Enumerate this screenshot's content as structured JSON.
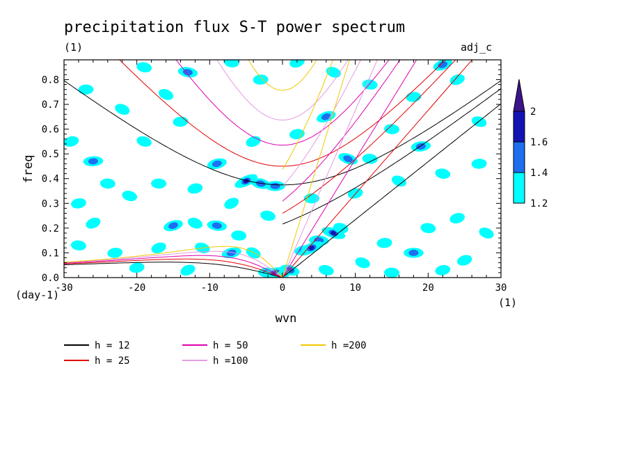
{
  "chart_data": {
    "type": "heatmap",
    "title": "precipitation flux S-T power spectrum",
    "subtitle_left": "(1)",
    "subtitle_right": "adj_c",
    "xlabel": "wvn",
    "ylabel": "freq",
    "x_unit": "(1)",
    "y_unit": "(day-1)",
    "xlim": [
      -30,
      30
    ],
    "ylim": [
      0,
      0.88
    ],
    "x_ticks": [
      -30,
      -20,
      -10,
      0,
      10,
      20,
      30
    ],
    "x_tick_labels": [
      "-30",
      "-20",
      "-10",
      "0",
      "10",
      "20",
      "30"
    ],
    "y_ticks": [
      0,
      0.1,
      0.2,
      0.3,
      0.4,
      0.5,
      0.6,
      0.7,
      0.8
    ],
    "y_tick_labels": [
      "0.0",
      "0.1",
      "0.2",
      "0.3",
      "0.4",
      "0.5",
      "0.6",
      "0.7",
      "0.8"
    ],
    "colorbar": {
      "levels": [
        1.2,
        1.4,
        1.6,
        2
      ],
      "labels": [
        "1.2",
        "1.4",
        "1.6",
        "2"
      ],
      "colors": [
        "#00ffff",
        "#1e6ef0",
        "#1414b4",
        "#3c148c"
      ]
    },
    "dispersion_curves": [
      {
        "label": "h = 12",
        "h": 12,
        "color": "#000000"
      },
      {
        "label": "h = 25",
        "h": 25,
        "color": "#e00000"
      },
      {
        "label": "h = 50",
        "h": 50,
        "color": "#e000b0"
      },
      {
        "label": "h =100",
        "h": 100,
        "color": "#e29ae0"
      },
      {
        "label": "h =200",
        "h": 200,
        "color": "#f0c800"
      }
    ],
    "contour_blobs": [
      {
        "x": -5,
        "y": 0.39,
        "level": 3
      },
      {
        "x": -3,
        "y": 0.38,
        "level": 2
      },
      {
        "x": -1,
        "y": 0.37,
        "level": 2
      },
      {
        "x": -9,
        "y": 0.46,
        "level": 2
      },
      {
        "x": -16,
        "y": 0.74,
        "level": 1
      },
      {
        "x": -13,
        "y": 0.83,
        "level": 2
      },
      {
        "x": -26,
        "y": 0.47,
        "level": 2
      },
      {
        "x": -15,
        "y": 0.21,
        "level": 2
      },
      {
        "x": -12,
        "y": 0.22,
        "level": 1
      },
      {
        "x": -9,
        "y": 0.21,
        "level": 2
      },
      {
        "x": -14,
        "y": 0.63,
        "level": 1
      },
      {
        "x": 6,
        "y": 0.65,
        "level": 2
      },
      {
        "x": 9,
        "y": 0.48,
        "level": 2
      },
      {
        "x": 12,
        "y": 0.48,
        "level": 1
      },
      {
        "x": 19,
        "y": 0.53,
        "level": 2
      },
      {
        "x": 22,
        "y": 0.86,
        "level": 2
      },
      {
        "x": 7,
        "y": 0.18,
        "level": 3
      },
      {
        "x": 5,
        "y": 0.15,
        "level": 2
      },
      {
        "x": 3,
        "y": 0.11,
        "level": 2
      },
      {
        "x": 4,
        "y": 0.12,
        "level": 3
      },
      {
        "x": 1,
        "y": 0.03,
        "level": 2
      },
      {
        "x": -2,
        "y": 0.02,
        "level": 2
      },
      {
        "x": -1,
        "y": 0.02,
        "level": 3
      },
      {
        "x": 0,
        "y": 0.01,
        "level": 1
      },
      {
        "x": 8,
        "y": 0.2,
        "level": 1
      },
      {
        "x": 18,
        "y": 0.1,
        "level": 2
      },
      {
        "x": -7,
        "y": 0.1,
        "level": 2
      },
      {
        "x": -4,
        "y": 0.1,
        "level": 1
      },
      {
        "x": -19,
        "y": 0.85,
        "level": 1
      },
      {
        "x": -27,
        "y": 0.76,
        "level": 1
      },
      {
        "x": -29,
        "y": 0.55,
        "level": 1
      },
      {
        "x": -22,
        "y": 0.68,
        "level": 1
      },
      {
        "x": -7,
        "y": 0.87,
        "level": 1
      },
      {
        "x": -3,
        "y": 0.8,
        "level": 1
      },
      {
        "x": 2,
        "y": 0.87,
        "level": 1
      },
      {
        "x": 7,
        "y": 0.83,
        "level": 1
      },
      {
        "x": 12,
        "y": 0.78,
        "level": 1
      },
      {
        "x": 18,
        "y": 0.73,
        "level": 1
      },
      {
        "x": 24,
        "y": 0.8,
        "level": 1
      },
      {
        "x": 27,
        "y": 0.63,
        "level": 1
      },
      {
        "x": 15,
        "y": 0.6,
        "level": 1
      },
      {
        "x": 2,
        "y": 0.58,
        "level": 1
      },
      {
        "x": -4,
        "y": 0.55,
        "level": 1
      },
      {
        "x": -19,
        "y": 0.55,
        "level": 1
      },
      {
        "x": -24,
        "y": 0.38,
        "level": 1
      },
      {
        "x": -28,
        "y": 0.3,
        "level": 1
      },
      {
        "x": -26,
        "y": 0.22,
        "level": 1
      },
      {
        "x": -21,
        "y": 0.33,
        "level": 1
      },
      {
        "x": -17,
        "y": 0.38,
        "level": 1
      },
      {
        "x": -12,
        "y": 0.36,
        "level": 1
      },
      {
        "x": -7,
        "y": 0.3,
        "level": 1
      },
      {
        "x": -2,
        "y": 0.25,
        "level": 1
      },
      {
        "x": 4,
        "y": 0.32,
        "level": 1
      },
      {
        "x": 10,
        "y": 0.34,
        "level": 1
      },
      {
        "x": 16,
        "y": 0.39,
        "level": 1
      },
      {
        "x": 22,
        "y": 0.42,
        "level": 1
      },
      {
        "x": 27,
        "y": 0.46,
        "level": 1
      },
      {
        "x": 24,
        "y": 0.24,
        "level": 1
      },
      {
        "x": 28,
        "y": 0.18,
        "level": 1
      },
      {
        "x": 20,
        "y": 0.2,
        "level": 1
      },
      {
        "x": 14,
        "y": 0.14,
        "level": 1
      },
      {
        "x": 25,
        "y": 0.07,
        "level": 1
      },
      {
        "x": 11,
        "y": 0.06,
        "level": 1
      },
      {
        "x": -28,
        "y": 0.13,
        "level": 1
      },
      {
        "x": -23,
        "y": 0.1,
        "level": 1
      },
      {
        "x": -17,
        "y": 0.12,
        "level": 1
      },
      {
        "x": -11,
        "y": 0.12,
        "level": 1
      },
      {
        "x": -6,
        "y": 0.17,
        "level": 1
      },
      {
        "x": -20,
        "y": 0.04,
        "level": 1
      },
      {
        "x": -13,
        "y": 0.03,
        "level": 1
      },
      {
        "x": 6,
        "y": 0.03,
        "level": 1
      },
      {
        "x": 15,
        "y": 0.02,
        "level": 1
      },
      {
        "x": 22,
        "y": 0.03,
        "level": 1
      }
    ]
  }
}
